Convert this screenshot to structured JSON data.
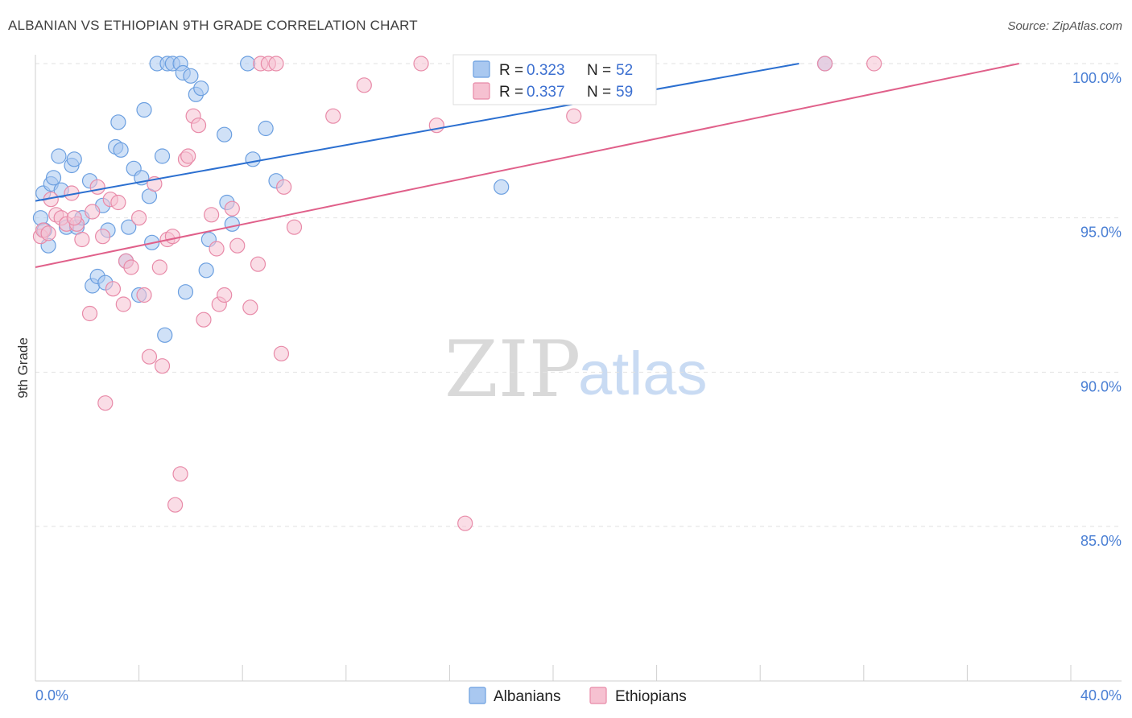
{
  "title": "ALBANIAN VS ETHIOPIAN 9TH GRADE CORRELATION CHART",
  "source": "Source: ZipAtlas.com",
  "watermark": {
    "zip": "ZIP",
    "atlas": "atlas"
  },
  "chart_data": {
    "type": "scatter",
    "ylabel": "9th Grade",
    "xlim": [
      0,
      40
    ],
    "ylim": [
      80.5,
      100.75
    ],
    "x_tick_labels": [
      "0.0%",
      "40.0%"
    ],
    "y_ticks": [
      {
        "value": 100,
        "label": "100.0%"
      },
      {
        "value": 95,
        "label": "95.0%"
      },
      {
        "value": 90,
        "label": "90.0%"
      },
      {
        "value": 85,
        "label": "85.0%"
      }
    ],
    "legend": {
      "rows": [
        {
          "r_label": "R = ",
          "r": "0.323",
          "n_label": "N = ",
          "n": "52"
        },
        {
          "r_label": "R = ",
          "r": "0.337",
          "n_label": "N = ",
          "n": "59"
        }
      ]
    },
    "series": [
      {
        "name": "Albanians",
        "color": "#6b9fe0",
        "fill": "#a9c8f0",
        "line_color": "#2b6fd0",
        "trend": {
          "x0": 0,
          "y0": 95.55,
          "x1": 29.5,
          "y1": 100.0
        },
        "points": [
          [
            0.2,
            95.0
          ],
          [
            0.3,
            95.8
          ],
          [
            0.5,
            94.1
          ],
          [
            0.6,
            96.1
          ],
          [
            0.7,
            96.3
          ],
          [
            0.9,
            97.0
          ],
          [
            1.0,
            95.9
          ],
          [
            1.2,
            94.7
          ],
          [
            1.4,
            96.7
          ],
          [
            1.5,
            96.9
          ],
          [
            1.6,
            94.7
          ],
          [
            1.8,
            95.0
          ],
          [
            2.1,
            96.2
          ],
          [
            2.2,
            92.8
          ],
          [
            2.4,
            93.1
          ],
          [
            2.6,
            95.4
          ],
          [
            2.7,
            92.9
          ],
          [
            2.8,
            94.6
          ],
          [
            3.1,
            97.3
          ],
          [
            3.2,
            98.1
          ],
          [
            3.3,
            97.2
          ],
          [
            3.5,
            93.6
          ],
          [
            3.6,
            94.7
          ],
          [
            3.8,
            96.6
          ],
          [
            4.0,
            92.5
          ],
          [
            4.1,
            96.3
          ],
          [
            4.2,
            98.5
          ],
          [
            4.4,
            95.7
          ],
          [
            4.5,
            94.2
          ],
          [
            4.7,
            100.0
          ],
          [
            4.9,
            97.0
          ],
          [
            5.0,
            91.2
          ],
          [
            5.1,
            100.0
          ],
          [
            5.3,
            100.0
          ],
          [
            5.6,
            100.0
          ],
          [
            5.7,
            99.7
          ],
          [
            5.8,
            92.6
          ],
          [
            6.0,
            99.6
          ],
          [
            6.2,
            99.0
          ],
          [
            6.4,
            99.2
          ],
          [
            6.6,
            93.3
          ],
          [
            6.7,
            94.3
          ],
          [
            7.3,
            97.7
          ],
          [
            7.4,
            95.5
          ],
          [
            7.6,
            94.8
          ],
          [
            8.2,
            100.0
          ],
          [
            8.4,
            96.9
          ],
          [
            8.9,
            97.9
          ],
          [
            9.3,
            96.2
          ],
          [
            18.0,
            96.0
          ],
          [
            30.5,
            100.0
          ],
          [
            0.35,
            94.6
          ]
        ]
      },
      {
        "name": "Ethiopians",
        "color": "#e88aa8",
        "fill": "#f6c1d1",
        "line_color": "#e0608a",
        "trend": {
          "x0": 0,
          "y0": 93.4,
          "x1": 38.0,
          "y1": 100.0
        },
        "points": [
          [
            0.2,
            94.4
          ],
          [
            0.3,
            94.6
          ],
          [
            0.5,
            94.5
          ],
          [
            0.6,
            95.6
          ],
          [
            0.8,
            95.1
          ],
          [
            1.0,
            95.0
          ],
          [
            1.2,
            94.8
          ],
          [
            1.4,
            95.8
          ],
          [
            1.6,
            94.8
          ],
          [
            1.8,
            94.3
          ],
          [
            2.1,
            91.9
          ],
          [
            2.2,
            95.2
          ],
          [
            2.4,
            96.0
          ],
          [
            2.6,
            94.4
          ],
          [
            2.7,
            89.0
          ],
          [
            2.9,
            95.6
          ],
          [
            3.0,
            92.7
          ],
          [
            3.2,
            95.5
          ],
          [
            3.4,
            92.2
          ],
          [
            3.5,
            93.6
          ],
          [
            3.7,
            93.4
          ],
          [
            4.0,
            95.0
          ],
          [
            4.2,
            92.5
          ],
          [
            4.4,
            90.5
          ],
          [
            4.6,
            96.1
          ],
          [
            4.8,
            93.4
          ],
          [
            4.9,
            90.2
          ],
          [
            5.1,
            94.3
          ],
          [
            5.3,
            94.4
          ],
          [
            5.4,
            85.7
          ],
          [
            5.6,
            86.7
          ],
          [
            5.8,
            96.9
          ],
          [
            5.9,
            97.0
          ],
          [
            6.1,
            98.3
          ],
          [
            6.3,
            98.0
          ],
          [
            6.5,
            91.7
          ],
          [
            6.8,
            95.1
          ],
          [
            7.0,
            94.0
          ],
          [
            7.1,
            92.2
          ],
          [
            7.3,
            92.5
          ],
          [
            7.6,
            95.3
          ],
          [
            7.8,
            94.1
          ],
          [
            8.3,
            92.1
          ],
          [
            8.6,
            93.5
          ],
          [
            8.7,
            100.0
          ],
          [
            9.0,
            100.0
          ],
          [
            9.3,
            100.0
          ],
          [
            9.5,
            90.6
          ],
          [
            9.6,
            96.0
          ],
          [
            10.0,
            94.7
          ],
          [
            11.5,
            98.3
          ],
          [
            12.7,
            99.3
          ],
          [
            14.9,
            100.0
          ],
          [
            15.5,
            98.0
          ],
          [
            16.6,
            85.1
          ],
          [
            20.8,
            98.3
          ],
          [
            30.5,
            100.0
          ],
          [
            32.4,
            100.0
          ],
          [
            1.5,
            95.0
          ]
        ]
      }
    ]
  }
}
